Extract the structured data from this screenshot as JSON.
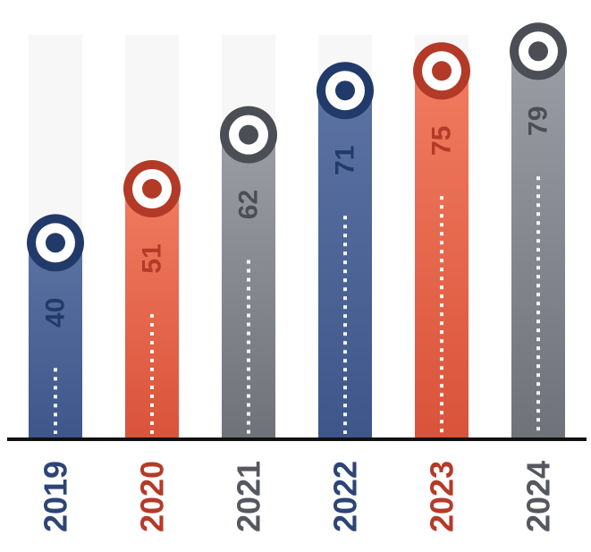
{
  "chart_data": {
    "type": "bar",
    "title": "",
    "xlabel": "",
    "ylabel": "",
    "categories": [
      "2019",
      "2020",
      "2021",
      "2022",
      "2023",
      "2024"
    ],
    "values": [
      40,
      51,
      62,
      71,
      75,
      79
    ],
    "ylim": [
      0,
      84
    ],
    "grid": false,
    "legend": "none",
    "bar_colors": [
      "blue",
      "orange",
      "gray",
      "blue",
      "orange",
      "gray"
    ]
  },
  "colors": {
    "blue": {
      "top": "#5b72a2",
      "bottom": "#3e568a",
      "dark": "#213a69",
      "label": "#2d4575"
    },
    "orange": {
      "top": "#f07b5f",
      "bottom": "#d9533a",
      "dark": "#b33a27",
      "label": "#b53a28"
    },
    "gray": {
      "top": "#9a9da4",
      "bottom": "#6f7278",
      "dark": "#4b4e55",
      "label": "#55585e"
    },
    "track": "#f7f7f7",
    "baseline": "#111111"
  }
}
